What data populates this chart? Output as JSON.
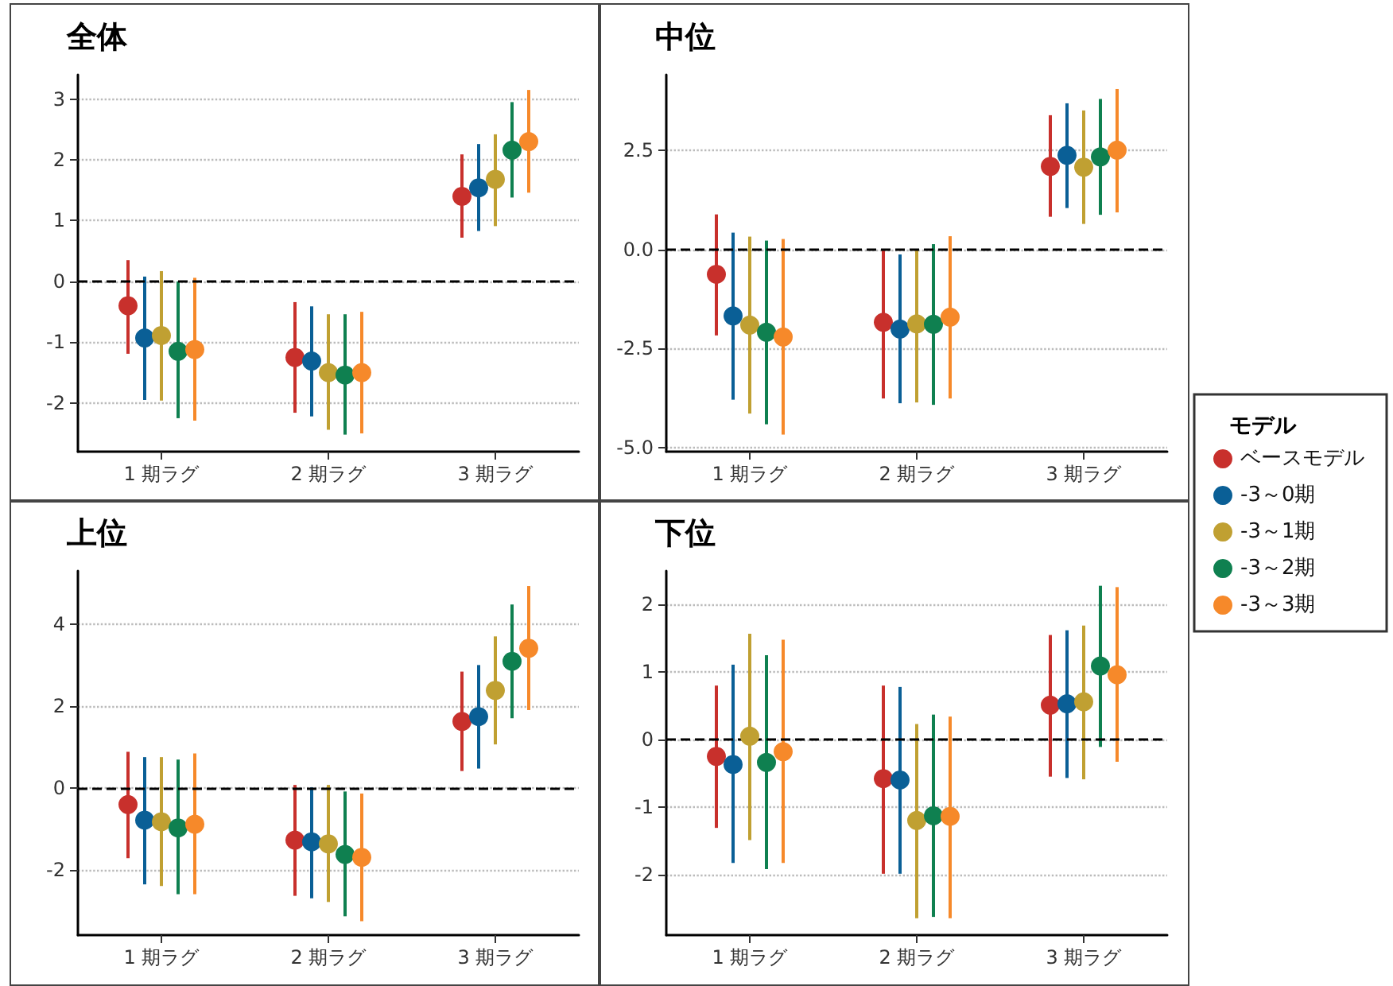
{
  "chart_data": [
    {
      "type": "scatter",
      "title": "全体",
      "categories": [
        "1 期ラグ",
        "2 期ラグ",
        "3 期ラグ"
      ],
      "ylim": [
        -2.8,
        3.4
      ],
      "yticks": [
        -2,
        -1,
        0,
        1,
        2,
        3
      ],
      "grid": "y",
      "legend": false,
      "marker": "circle",
      "ref_lines": [
        {
          "axis": "y",
          "value": 0,
          "line_style": "dashed",
          "color": "#000000"
        }
      ],
      "series": [
        {
          "color": "#c8302c",
          "values": [
            -0.4,
            -1.25,
            1.4
          ],
          "errors": [
            [
              -1.19,
              0.35
            ],
            [
              -2.16,
              -0.34
            ],
            [
              0.72,
              2.09
            ]
          ]
        },
        {
          "color": "#0a5f96",
          "values": [
            -0.93,
            -1.31,
            1.54
          ],
          "errors": [
            [
              -1.95,
              0.08
            ],
            [
              -2.22,
              -0.41
            ],
            [
              0.83,
              2.26
            ]
          ]
        },
        {
          "color": "#c0a032",
          "values": [
            -0.89,
            -1.5,
            1.68
          ],
          "errors": [
            [
              -1.96,
              0.17
            ],
            [
              -2.44,
              -0.54
            ],
            [
              0.91,
              2.42
            ]
          ]
        },
        {
          "color": "#0f8050",
          "values": [
            -1.15,
            -1.54,
            2.16
          ],
          "errors": [
            [
              -2.25,
              0.0
            ],
            [
              -2.52,
              -0.54
            ],
            [
              1.38,
              2.95
            ]
          ]
        },
        {
          "color": "#f6892a",
          "values": [
            -1.12,
            -1.5,
            2.3
          ],
          "errors": [
            [
              -2.29,
              0.06
            ],
            [
              -2.5,
              -0.5
            ],
            [
              1.46,
              3.15
            ]
          ]
        }
      ]
    },
    {
      "type": "scatter",
      "title": "中位",
      "categories": [
        "1 期ラグ",
        "2 期ラグ",
        "3 期ラグ"
      ],
      "ylim": [
        -5.1,
        4.4
      ],
      "yticks": [
        {
          "value": -5,
          "label": "-5.0"
        },
        -2.5,
        {
          "value": 0,
          "label": "0.0"
        },
        2.5
      ],
      "grid": "y",
      "legend": "right",
      "legend_title": "モデル",
      "marker": "circle",
      "ref_lines": [
        {
          "axis": "y",
          "value": 0,
          "line_style": "dashed",
          "color": "#000000"
        }
      ],
      "series": [
        {
          "name": "ベースモデル",
          "color": "#c8302c",
          "values": [
            -0.63,
            -1.84,
            2.09
          ],
          "errors": [
            [
              -2.17,
              0.88
            ],
            [
              -3.76,
              0.0
            ],
            [
              0.82,
              3.38
            ]
          ]
        },
        {
          "name": "-3～0期",
          "color": "#0a5f96",
          "values": [
            -1.68,
            -2.01,
            2.37
          ],
          "errors": [
            [
              -3.79,
              0.42
            ],
            [
              -3.88,
              -0.13
            ],
            [
              1.04,
              3.68
            ]
          ]
        },
        {
          "name": "-3～1期",
          "color": "#c0a032",
          "values": [
            -1.91,
            -1.88,
            2.07
          ],
          "errors": [
            [
              -4.14,
              0.32
            ],
            [
              -3.86,
              0.0
            ],
            [
              0.64,
              3.5
            ]
          ]
        },
        {
          "name": "-3～2期",
          "color": "#0f8050",
          "values": [
            -2.09,
            -1.89,
            2.33
          ],
          "errors": [
            [
              -4.41,
              0.22
            ],
            [
              -3.92,
              0.13
            ],
            [
              0.87,
              3.79
            ]
          ]
        },
        {
          "name": "-3～3期",
          "color": "#f6892a",
          "values": [
            -2.21,
            -1.71,
            2.5
          ],
          "errors": [
            [
              -4.67,
              0.26
            ],
            [
              -3.76,
              0.33
            ],
            [
              0.93,
              4.04
            ]
          ]
        }
      ]
    },
    {
      "type": "scatter",
      "title": "上位",
      "categories": [
        "1 期ラグ",
        "2 期ラグ",
        "3 期ラグ"
      ],
      "ylim": [
        -3.6,
        5.3
      ],
      "yticks": [
        -2,
        0,
        2,
        4
      ],
      "grid": "y",
      "legend": false,
      "marker": "circle",
      "ref_lines": [
        {
          "axis": "y",
          "value": 0,
          "line_style": "dashed",
          "color": "#000000"
        }
      ],
      "series": [
        {
          "color": "#c8302c",
          "values": [
            -0.41,
            -1.28,
            1.62
          ],
          "errors": [
            [
              -1.72,
              0.88
            ],
            [
              -2.64,
              0.07
            ],
            [
              0.41,
              2.84
            ]
          ]
        },
        {
          "color": "#0a5f96",
          "values": [
            -0.79,
            -1.32,
            1.74
          ],
          "errors": [
            [
              -2.36,
              0.75
            ],
            [
              -2.7,
              0.01
            ],
            [
              0.47,
              3.0
            ]
          ]
        },
        {
          "color": "#c0a032",
          "values": [
            -0.83,
            -1.37,
            2.38
          ],
          "errors": [
            [
              -2.4,
              0.75
            ],
            [
              -2.79,
              0.07
            ],
            [
              1.06,
              3.7
            ]
          ]
        },
        {
          "color": "#0f8050",
          "values": [
            -0.98,
            -1.63,
            3.09
          ],
          "errors": [
            [
              -2.6,
              0.69
            ],
            [
              -3.14,
              -0.09
            ],
            [
              1.7,
              4.48
            ]
          ]
        },
        {
          "color": "#f6892a",
          "values": [
            -0.89,
            -1.7,
            3.41
          ],
          "errors": [
            [
              -2.6,
              0.84
            ],
            [
              -3.26,
              -0.14
            ],
            [
              1.9,
              4.93
            ]
          ]
        }
      ]
    },
    {
      "type": "scatter",
      "title": "下位",
      "categories": [
        "1 期ラグ",
        "2 期ラグ",
        "3 期ラグ"
      ],
      "ylim": [
        -2.9,
        2.5
      ],
      "yticks": [
        -2,
        -1,
        0,
        1,
        2
      ],
      "grid": "y",
      "legend": false,
      "marker": "circle",
      "ref_lines": [
        {
          "axis": "y",
          "value": 0,
          "line_style": "dashed",
          "color": "#000000"
        }
      ],
      "series": [
        {
          "color": "#c8302c",
          "values": [
            -0.25,
            -0.58,
            0.51
          ],
          "errors": [
            [
              -1.31,
              0.8
            ],
            [
              -1.99,
              0.8
            ],
            [
              -0.55,
              1.55
            ]
          ]
        },
        {
          "color": "#0a5f96",
          "values": [
            -0.37,
            -0.6,
            0.53
          ],
          "errors": [
            [
              -1.83,
              1.11
            ],
            [
              -1.99,
              0.78
            ],
            [
              -0.57,
              1.62
            ]
          ]
        },
        {
          "color": "#c0a032",
          "values": [
            0.05,
            -1.2,
            0.56
          ],
          "errors": [
            [
              -1.49,
              1.57
            ],
            [
              -2.65,
              0.23
            ],
            [
              -0.59,
              1.69
            ]
          ]
        },
        {
          "color": "#0f8050",
          "values": [
            -0.34,
            -1.13,
            1.09
          ],
          "errors": [
            [
              -1.92,
              1.25
            ],
            [
              -2.63,
              0.37
            ],
            [
              -0.11,
              2.28
            ]
          ]
        },
        {
          "color": "#f6892a",
          "values": [
            -0.18,
            -1.14,
            0.96
          ],
          "errors": [
            [
              -1.83,
              1.48
            ],
            [
              -2.65,
              0.34
            ],
            [
              -0.33,
              2.26
            ]
          ]
        }
      ]
    }
  ]
}
